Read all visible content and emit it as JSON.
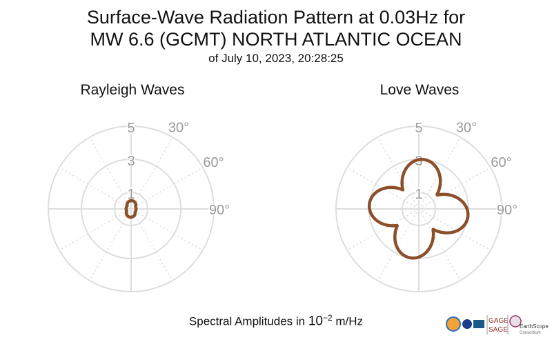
{
  "header": {
    "title_line1": "Surface-Wave Radiation Pattern at 0.03Hz for",
    "title_line2": "MW 6.6 (GCMT) NORTH ATLANTIC OCEAN",
    "subtitle": "of July 10, 2023, 20:28:25"
  },
  "footer": {
    "label_prefix": "Spectral Amplitudes in ",
    "label_base": "10",
    "label_exp": "−2",
    "label_unit": " m/Hz"
  },
  "logos": {
    "gage": "GAGE",
    "sage": "SAGE",
    "earthscope": "EarthScope",
    "consortium": "Consortium"
  },
  "colors": {
    "pattern": "#8B4F2A",
    "grid": "#dddddd",
    "tick_text": "#999999"
  },
  "chart_data": [
    {
      "type": "polar-line",
      "title": "Rayleigh Waves",
      "radial_ticks": [
        "1",
        "3",
        "5"
      ],
      "radial_max": 5,
      "angle_ticks": [
        "30°",
        "60°",
        "90°"
      ],
      "lobes": [
        {
          "azimuth_deg": 5,
          "amplitude": 0.5
        },
        {
          "azimuth_deg": 185,
          "amplitude": 0.5
        }
      ],
      "lobe_exponent": 0.8,
      "background_amplitude": 0.3
    },
    {
      "type": "polar-line",
      "title": "Love Waves",
      "radial_ticks": [
        "1",
        "3",
        "5"
      ],
      "radial_max": 5,
      "angle_ticks": [
        "30°",
        "60°",
        "90°"
      ],
      "lobes": [
        {
          "azimuth_deg": 5,
          "amplitude": 3.0
        },
        {
          "azimuth_deg": 100,
          "amplitude": 3.0
        },
        {
          "azimuth_deg": 190,
          "amplitude": 3.0
        },
        {
          "azimuth_deg": 275,
          "amplitude": 3.0
        }
      ],
      "lobe_exponent": 2.0,
      "background_amplitude": 0
    }
  ]
}
